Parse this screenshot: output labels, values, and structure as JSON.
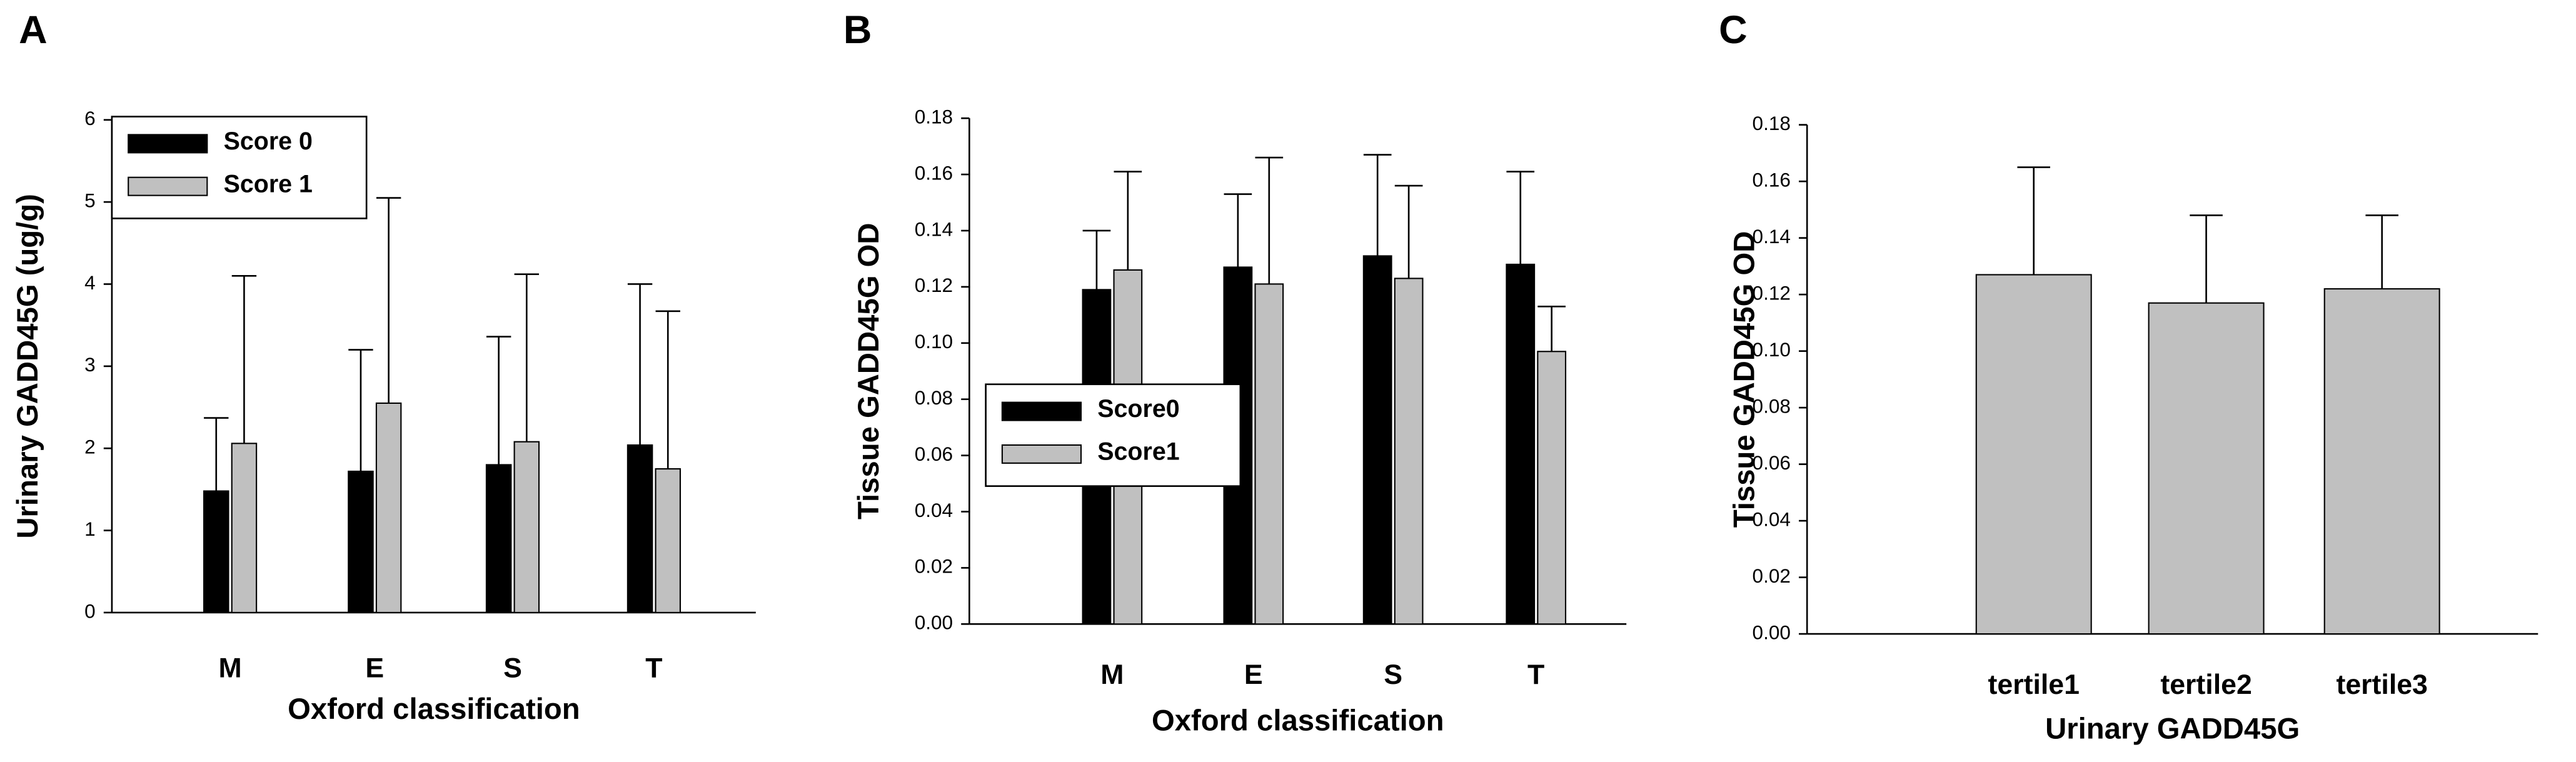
{
  "chart_data": [
    {
      "type": "bar",
      "panel": "A",
      "ylabel": "Urinary GADD45G (ug/g)",
      "xlabel": "Oxford classification",
      "categories": [
        "M",
        "E",
        "S",
        "T"
      ],
      "series": [
        {
          "name": "Score 0",
          "color": "#000000",
          "values": [
            1.48,
            1.72,
            1.8,
            2.04
          ],
          "errors": [
            0.89,
            1.48,
            1.56,
            1.96
          ]
        },
        {
          "name": "Score 1",
          "color": "#c0c0c0",
          "values": [
            2.06,
            2.55,
            2.08,
            1.75
          ],
          "errors": [
            2.04,
            2.5,
            2.04,
            1.92
          ]
        }
      ],
      "ylim": [
        0,
        6
      ],
      "yticks": [
        0,
        1,
        2,
        3,
        4,
        5,
        6
      ],
      "legend": "upper left"
    },
    {
      "type": "bar",
      "panel": "B",
      "ylabel": "Tissue GADD45G OD",
      "xlabel": "Oxford classification",
      "categories": [
        "M",
        "E",
        "S",
        "T"
      ],
      "series": [
        {
          "name": "Score0",
          "color": "#000000",
          "values": [
            0.119,
            0.127,
            0.131,
            0.128
          ],
          "errors": [
            0.021,
            0.026,
            0.036,
            0.033
          ]
        },
        {
          "name": "Score1",
          "color": "#c0c0c0",
          "values": [
            0.126,
            0.121,
            0.123,
            0.097
          ],
          "errors": [
            0.035,
            0.045,
            0.033,
            0.016
          ]
        }
      ],
      "ylim": [
        0,
        0.18
      ],
      "yticks": [
        {
          "value": 0,
          "label": "0.00"
        },
        0.02,
        0.04,
        0.06,
        0.08,
        {
          "value": 0.1,
          "label": "0.10"
        },
        0.12,
        0.14,
        0.16,
        0.18
      ],
      "legend": "center left"
    },
    {
      "type": "bar",
      "panel": "C",
      "ylabel": "Tissue GADD45G OD",
      "xlabel": "Urinary GADD45G",
      "categories": [
        "tertile1",
        "tertile2",
        "tertile3"
      ],
      "series": [
        {
          "color": "#c0c0c0",
          "values": [
            0.127,
            0.117,
            0.122
          ],
          "errors": [
            0.038,
            0.031,
            0.026
          ]
        }
      ],
      "ylim": [
        0,
        0.18
      ],
      "yticks": [
        {
          "value": 0,
          "label": "0.00"
        },
        0.02,
        0.04,
        0.06,
        0.08,
        {
          "value": 0.1,
          "label": "0.10"
        },
        0.12,
        0.14,
        0.16,
        0.18
      ]
    }
  ]
}
